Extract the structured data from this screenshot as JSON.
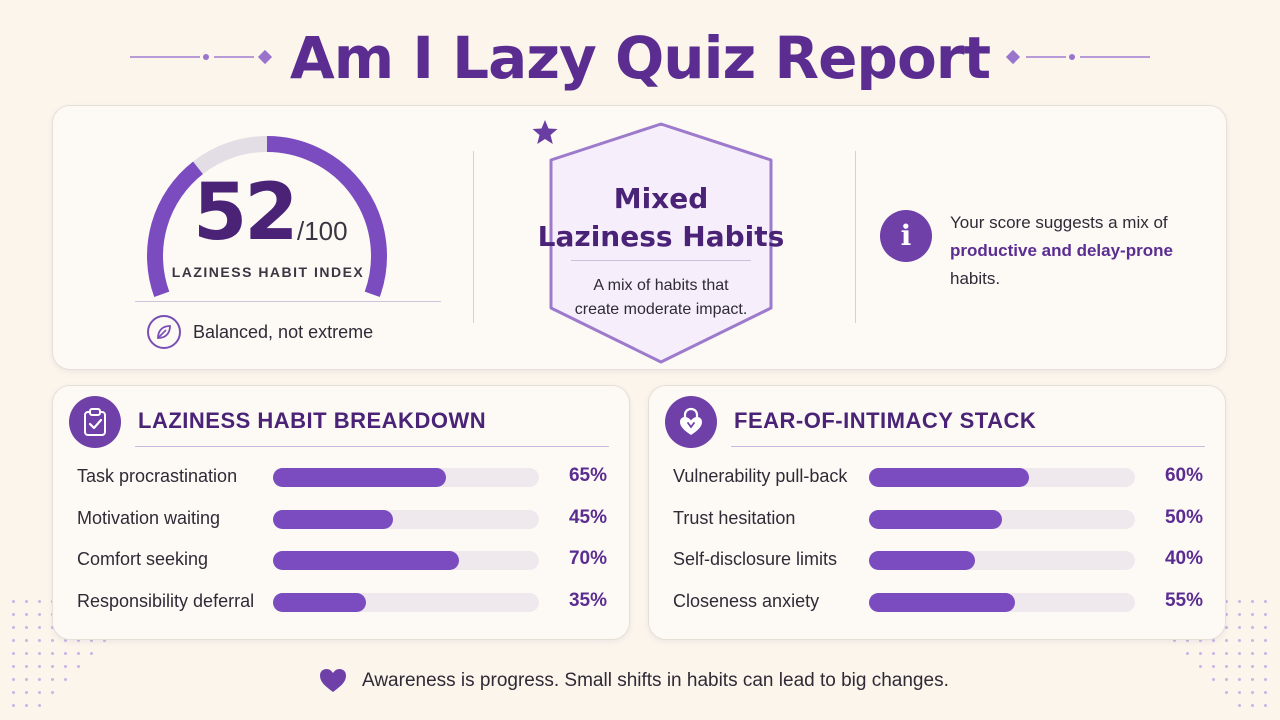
{
  "title": "Am I Lazy Quiz Report",
  "score": {
    "value": "52",
    "max": "/100",
    "fraction": 0.52,
    "label": "LAZINESS HABIT INDEX",
    "status": "Balanced, not extreme",
    "status_icon": "leaf-icon"
  },
  "badge": {
    "icon": "star-icon",
    "title_line1": "Mixed",
    "title_line2": "Laziness Habits",
    "desc_line1": "A mix of habits that",
    "desc_line2": "create moderate impact."
  },
  "info": {
    "icon": "info-icon",
    "text_before": "Your score suggests a mix of ",
    "highlight": "productive and delay-prone",
    "text_after": " habits."
  },
  "breakdown": {
    "icon": "clipboard-check-icon",
    "title": "LAZINESS HABIT BREAKDOWN",
    "items": [
      {
        "label": "Task procrastination",
        "value": 65,
        "display": "65%"
      },
      {
        "label": "Motivation waiting",
        "value": 45,
        "display": "45%"
      },
      {
        "label": "Comfort seeking",
        "value": 70,
        "display": "70%"
      },
      {
        "label": "Responsibility deferral",
        "value": 35,
        "display": "35%"
      }
    ]
  },
  "intimacy": {
    "icon": "heart-lock-icon",
    "title": "FEAR-OF-INTIMACY STACK",
    "items": [
      {
        "label": "Vulnerability pull-back",
        "value": 60,
        "display": "60%"
      },
      {
        "label": "Trust hesitation",
        "value": 50,
        "display": "50%"
      },
      {
        "label": "Self-disclosure limits",
        "value": 40,
        "display": "40%"
      },
      {
        "label": "Closeness anxiety",
        "value": 55,
        "display": "55%"
      }
    ]
  },
  "footer": {
    "icon": "heart-icon",
    "text": "Awareness is progress. Small shifts in habits can lead to big changes."
  },
  "colors": {
    "accent": "#5b2d91",
    "bar": "#7a4cbf",
    "track": "#efe9ee",
    "background": "#fbf5ec"
  }
}
